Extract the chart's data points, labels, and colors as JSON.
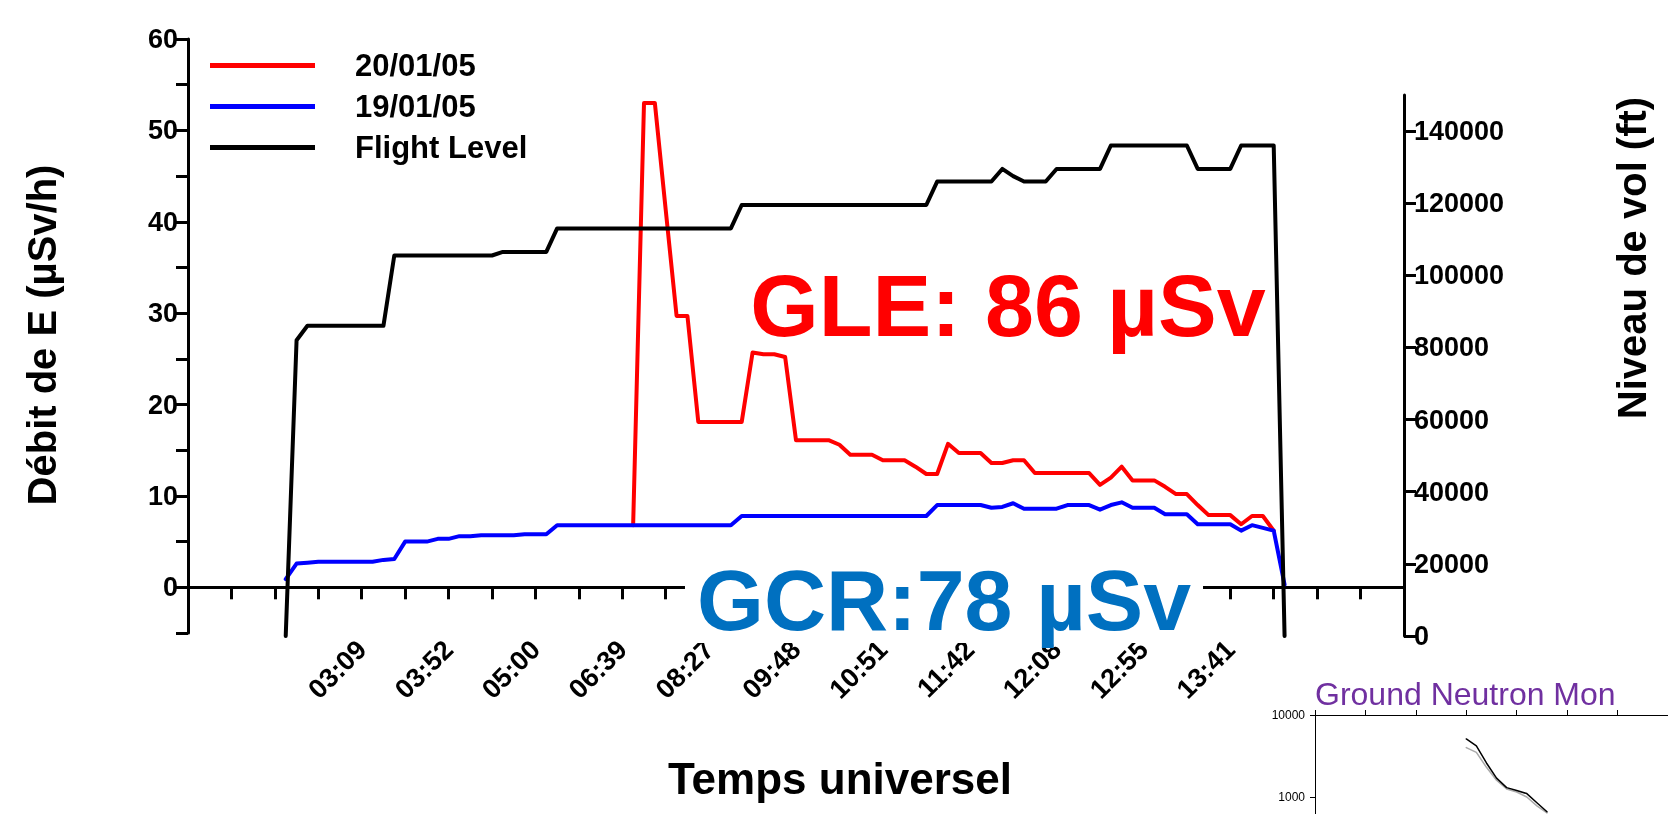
{
  "chart_data": [
    {
      "type": "line",
      "xlabel": "Temps universel",
      "ylabel": "Débit de E (µSv/h)",
      "y2label": "Niveau de vol (ft)",
      "annotations": [
        "GLE: 86 µSv",
        "GCR:78 µSv"
      ],
      "categories": [
        null,
        null,
        null,
        null,
        null,
        null,
        null,
        null,
        null,
        null,
        null,
        null,
        null,
        null,
        null,
        null,
        "03:09",
        null,
        null,
        null,
        null,
        null,
        null,
        null,
        "03:52",
        null,
        null,
        null,
        null,
        null,
        null,
        null,
        "05:00",
        null,
        null,
        null,
        null,
        null,
        null,
        null,
        "06:39",
        null,
        null,
        null,
        null,
        null,
        null,
        null,
        "08:27",
        null,
        null,
        null,
        null,
        null,
        null,
        null,
        "09:48",
        null,
        null,
        null,
        null,
        null,
        null,
        null,
        "10:51",
        null,
        null,
        null,
        null,
        null,
        null,
        null,
        "11:42",
        null,
        null,
        null,
        null,
        null,
        null,
        null,
        "12:08",
        null,
        null,
        null,
        null,
        null,
        null,
        null,
        "12:55",
        null,
        null,
        null,
        null,
        null,
        null,
        null,
        "13:41",
        null,
        null,
        null,
        null,
        null,
        null,
        null,
        null,
        null,
        null,
        null,
        null,
        null,
        null,
        null,
        null
      ],
      "series": [
        {
          "name": "20/01/05",
          "color": "#ff0000",
          "values": [
            null,
            null,
            null,
            null,
            null,
            null,
            null,
            null,
            null,
            null,
            null,
            null,
            null,
            null,
            null,
            null,
            null,
            null,
            null,
            null,
            null,
            null,
            null,
            null,
            null,
            null,
            null,
            null,
            null,
            null,
            null,
            null,
            null,
            null,
            null,
            null,
            null,
            null,
            null,
            null,
            null,
            6.8,
            53.0,
            53.0,
            41.3,
            29.7,
            29.7,
            18.1,
            18.1,
            18.1,
            18.1,
            18.1,
            25.7,
            25.5,
            25.5,
            25.2,
            16.1,
            16.1,
            16.1,
            16.1,
            15.6,
            14.5,
            14.5,
            14.5,
            13.9,
            13.9,
            13.9,
            13.2,
            12.4,
            12.4,
            15.7,
            14.7,
            14.7,
            14.7,
            13.6,
            13.6,
            13.9,
            13.9,
            12.5,
            12.5,
            12.5,
            12.5,
            12.5,
            12.5,
            11.2,
            12.0,
            13.2,
            11.7,
            11.7,
            11.7,
            11.0,
            10.2,
            10.2,
            9.0,
            7.9,
            7.9,
            7.9,
            6.9,
            7.8,
            7.8,
            6.2,
            null,
            null,
            null,
            null,
            null,
            null,
            null,
            null,
            null,
            null,
            null,
            null
          ]
        },
        {
          "name": "19/01/05",
          "color": "#0000ff",
          "values": [
            null,
            null,
            null,
            null,
            null,
            null,
            null,
            null,
            null,
            0.9,
            2.6,
            2.7,
            2.8,
            2.8,
            2.8,
            2.8,
            2.8,
            2.8,
            3.0,
            3.1,
            5.0,
            5.0,
            5.0,
            5.3,
            5.3,
            5.6,
            5.6,
            5.7,
            5.7,
            5.7,
            5.7,
            5.8,
            5.8,
            5.8,
            6.8,
            6.8,
            6.8,
            6.8,
            6.8,
            6.8,
            6.8,
            6.8,
            6.8,
            6.8,
            6.8,
            6.8,
            6.8,
            6.8,
            6.8,
            6.8,
            6.8,
            7.8,
            7.8,
            7.8,
            7.8,
            7.8,
            7.8,
            7.8,
            7.8,
            7.8,
            7.8,
            7.8,
            7.8,
            7.8,
            7.8,
            7.8,
            7.8,
            7.8,
            7.8,
            9.0,
            9.0,
            9.0,
            9.0,
            9.0,
            8.7,
            8.8,
            9.2,
            8.6,
            8.6,
            8.6,
            8.6,
            9.0,
            9.0,
            9.0,
            8.5,
            9.0,
            9.3,
            8.7,
            8.7,
            8.7,
            8.0,
            8.0,
            8.0,
            6.9,
            6.9,
            6.9,
            6.9,
            6.2,
            6.8,
            6.5,
            6.2,
            0.3,
            null,
            null,
            null,
            null,
            null,
            null,
            null,
            null,
            null,
            null,
            null
          ]
        },
        {
          "name": "Flight Level",
          "color": "#000000",
          "axis": "y2",
          "values": [
            null,
            null,
            null,
            null,
            null,
            null,
            null,
            null,
            null,
            0,
            82000,
            86000,
            86000,
            86000,
            86000,
            86000,
            86000,
            86000,
            86000,
            105500,
            105500,
            105500,
            105500,
            105500,
            105500,
            105500,
            105500,
            105500,
            105500,
            106500,
            106500,
            106500,
            106500,
            106500,
            113000,
            113000,
            113000,
            113000,
            113000,
            113000,
            113000,
            113000,
            113000,
            113000,
            113000,
            113000,
            113000,
            113000,
            113000,
            113000,
            113000,
            119500,
            119500,
            119500,
            119500,
            119500,
            119500,
            119500,
            119500,
            119500,
            119500,
            119500,
            119500,
            119500,
            119500,
            119500,
            119500,
            119500,
            119500,
            126000,
            126000,
            126000,
            126000,
            126000,
            126000,
            129500,
            127500,
            126000,
            126000,
            126000,
            129500,
            129500,
            129500,
            129500,
            129500,
            136000,
            136000,
            136000,
            136000,
            136000,
            136000,
            136000,
            136000,
            129500,
            129500,
            129500,
            129500,
            136000,
            136000,
            136000,
            136000,
            0,
            null,
            null,
            null,
            null,
            null,
            null,
            null,
            null,
            null,
            null,
            null
          ]
        }
      ],
      "ylim": [
        -5,
        60
      ],
      "yticks": [
        0,
        10,
        20,
        30,
        40,
        50,
        60
      ],
      "y2lim": [
        0,
        150000
      ],
      "y2ticks": [
        0,
        20000,
        40000,
        60000,
        80000,
        100000,
        120000,
        140000
      ],
      "grid": false,
      "legend": "top left",
      "marker": "none",
      "line_style": "solid"
    },
    {
      "type": "line",
      "title": "Ground Neutron Mon",
      "categories": [
        null,
        null,
        null,
        null,
        null,
        null,
        null,
        null,
        null,
        null,
        null,
        null,
        null,
        null,
        null,
        null,
        null,
        null,
        null,
        null,
        null,
        null,
        null,
        null,
        null,
        null,
        null,
        null,
        null,
        null,
        null,
        null,
        null,
        null,
        null,
        null
      ],
      "series": [
        {
          "color": "#aaaaaa",
          "values": [
            null,
            null,
            null,
            null,
            null,
            null,
            null,
            null,
            null,
            null,
            null,
            null,
            null,
            null,
            null,
            4000,
            3500,
            2300,
            1600,
            1250,
            1150,
            1000,
            780,
            640,
            null,
            null,
            null,
            null,
            null,
            null,
            null,
            null,
            null,
            null,
            null,
            null
          ]
        },
        {
          "color": "#000000",
          "values": [
            null,
            null,
            null,
            null,
            null,
            null,
            null,
            null,
            null,
            null,
            null,
            null,
            null,
            null,
            null,
            5100,
            4200,
            2600,
            1700,
            1300,
            1200,
            1100,
            850,
            660,
            null,
            null,
            null,
            null,
            null,
            null,
            null,
            null,
            null,
            null,
            null,
            null
          ]
        }
      ],
      "log": true,
      "ylim": [
        620,
        10000
      ],
      "yticks": [
        1000,
        10000
      ],
      "tick_labels": "y",
      "grid": false,
      "marker": "none",
      "line_style": "solid"
    }
  ]
}
